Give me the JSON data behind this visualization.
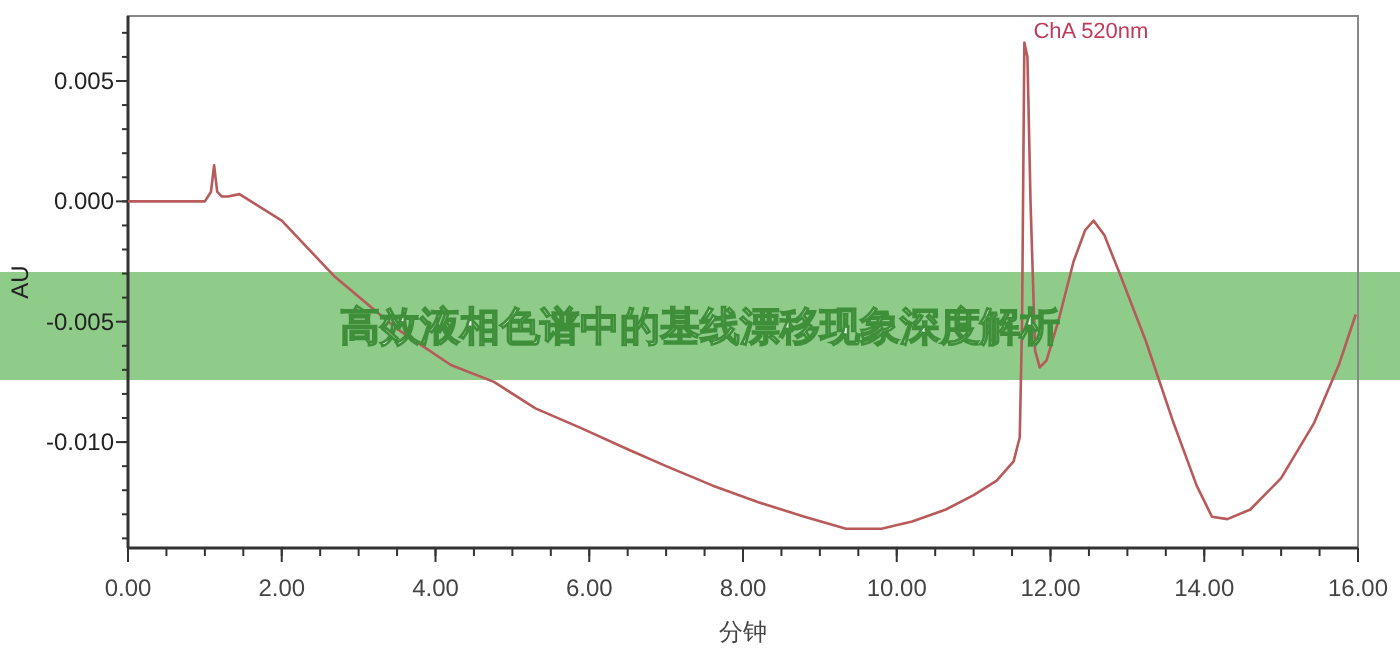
{
  "chart_data": {
    "type": "line",
    "title": "高效液相色谱中的基线漂移现象深度解析",
    "xlabel": "分钟",
    "ylabel": "AU",
    "annotations": [
      {
        "text": "ChA 520nm",
        "x": 11.7,
        "y": 0.0066
      }
    ],
    "xlim": [
      0,
      16
    ],
    "ylim": [
      -0.0144,
      0.0077
    ],
    "xticks": [
      {
        "value": 0,
        "label": "0.00"
      },
      {
        "value": 2,
        "label": "2.00"
      },
      {
        "value": 4,
        "label": "4.00"
      },
      {
        "value": 6,
        "label": "6.00"
      },
      {
        "value": 8,
        "label": "8.00"
      },
      {
        "value": 10,
        "label": "10.00"
      },
      {
        "value": 12,
        "label": "12.00"
      },
      {
        "value": 14,
        "label": "14.00"
      },
      {
        "value": 16,
        "label": "16.00"
      }
    ],
    "yticks": [
      {
        "value": 0.005,
        "label": "0.005"
      },
      {
        "value": 0,
        "label": "0.000"
      },
      {
        "value": -0.005,
        "label": "-0.005"
      },
      {
        "value": -0.01,
        "label": "-0.010"
      }
    ],
    "grid": false,
    "marker": "none",
    "line_style": "solid",
    "series": [
      {
        "color": "#b85a5a",
        "x": [
          0,
          0.5,
          1.0,
          1.08,
          1.12,
          1.16,
          1.22,
          1.3,
          1.45,
          1.6,
          2.0,
          2.68,
          3.5,
          4.2,
          4.76,
          5.3,
          5.88,
          6.5,
          7.0,
          7.6,
          8.2,
          8.8,
          9.34,
          9.8,
          10.2,
          10.64,
          11.0,
          11.3,
          11.52,
          11.6,
          11.63,
          11.66,
          11.7,
          11.74,
          11.8,
          11.86,
          11.95,
          12.1,
          12.3,
          12.45,
          12.56,
          12.7,
          12.9,
          13.24,
          13.6,
          13.9,
          14.1,
          14.3,
          14.6,
          15.0,
          15.43,
          15.75,
          15.97
        ],
        "values": [
          0,
          0,
          0,
          0.0004,
          0.0015,
          0.0004,
          0.0002,
          0.0002,
          0.0003,
          0,
          -0.0008,
          -0.0031,
          -0.0053,
          -0.0068,
          -0.0075,
          -0.0086,
          -0.0094,
          -0.0103,
          -0.011,
          -0.0118,
          -0.0125,
          -0.0131,
          -0.0136,
          -0.0136,
          -0.0133,
          -0.0128,
          -0.0122,
          -0.0116,
          -0.0108,
          -0.0098,
          -0.005,
          0.0066,
          0.006,
          0.0,
          -0.0062,
          -0.0069,
          -0.0066,
          -0.005,
          -0.0025,
          -0.0012,
          -0.0008,
          -0.0014,
          -0.003,
          -0.0058,
          -0.0092,
          -0.0118,
          -0.0131,
          -0.0132,
          -0.0128,
          -0.0115,
          -0.0092,
          -0.0068,
          -0.0047
        ]
      }
    ]
  }
}
